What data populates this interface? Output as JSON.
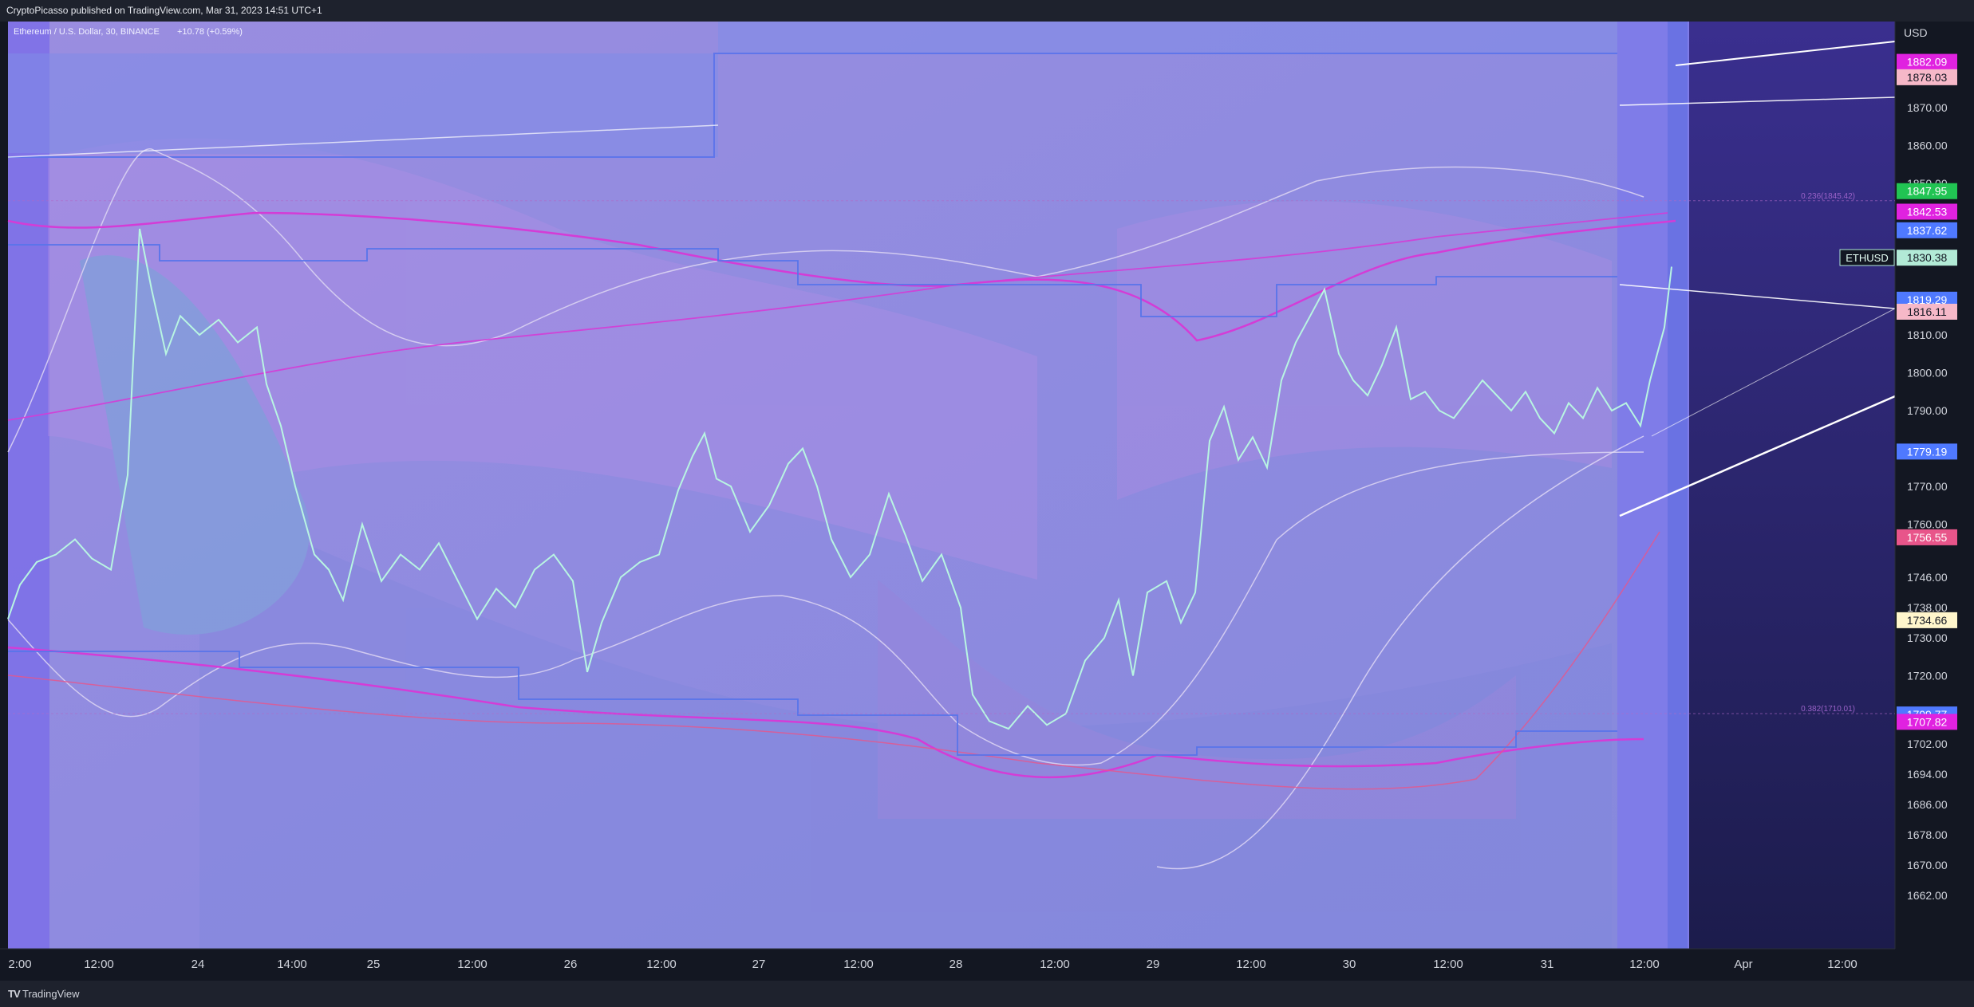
{
  "header": {
    "published_by": "CryptoPicasso published on TradingView.com, Mar 31, 2023 14:51 UTC+1"
  },
  "footer": {
    "brand": "TradingView",
    "logo_icon": "tradingview-logo-icon"
  },
  "legend": {
    "symbol_line": "Ethereum / U.S. Dollar, 30, BINANCE",
    "change": "+10.78 (+0.59%)"
  },
  "chart_data": {
    "type": "line",
    "symbol": "ETHUSD",
    "currency": "USD",
    "x_ticks": [
      "2:00",
      "12:00",
      "24",
      "14:00",
      "25",
      "12:00",
      "26",
      "12:00",
      "27",
      "12:00",
      "28",
      "12:00",
      "29",
      "12:00",
      "30",
      "12:00",
      "31",
      "12:00",
      "Apr",
      "12:00"
    ],
    "y_ticks": [
      1870,
      1860,
      1850,
      1830,
      1820,
      1810,
      1800,
      1790,
      1780,
      1770,
      1760,
      1746,
      1738,
      1730,
      1720,
      1710,
      1702,
      1694,
      1686,
      1678,
      1670,
      1662
    ],
    "y_tick_labels": [
      "1870.00",
      "1860.00",
      "1850.00",
      "1830.00",
      "1820.00",
      "1810.00",
      "1800.00",
      "1790.00",
      "1780.00",
      "1770.00",
      "1760.00",
      "1746.00",
      "1738.00",
      "1730.00",
      "1720.00",
      "1710.00",
      "1702.00",
      "1694.00",
      "1686.00",
      "1678.00",
      "1670.00",
      "1662.00"
    ],
    "price_series": [
      [
        0,
        1735
      ],
      [
        5,
        1744
      ],
      [
        12,
        1750
      ],
      [
        20,
        1752
      ],
      [
        28,
        1756
      ],
      [
        35,
        1751
      ],
      [
        43,
        1748
      ],
      [
        50,
        1773
      ],
      [
        55,
        1838
      ],
      [
        60,
        1822
      ],
      [
        66,
        1805
      ],
      [
        72,
        1815
      ],
      [
        80,
        1810
      ],
      [
        88,
        1814
      ],
      [
        96,
        1808
      ],
      [
        104,
        1812
      ],
      [
        108,
        1797
      ],
      [
        114,
        1786
      ],
      [
        120,
        1770
      ],
      [
        128,
        1752
      ],
      [
        134,
        1748
      ],
      [
        140,
        1740
      ],
      [
        148,
        1760
      ],
      [
        156,
        1745
      ],
      [
        164,
        1752
      ],
      [
        172,
        1748
      ],
      [
        180,
        1755
      ],
      [
        188,
        1745
      ],
      [
        196,
        1735
      ],
      [
        204,
        1743
      ],
      [
        212,
        1738
      ],
      [
        220,
        1748
      ],
      [
        228,
        1752
      ],
      [
        236,
        1745
      ],
      [
        242,
        1721
      ],
      [
        248,
        1734
      ],
      [
        256,
        1746
      ],
      [
        264,
        1750
      ],
      [
        272,
        1752
      ],
      [
        280,
        1769
      ],
      [
        286,
        1778
      ],
      [
        291,
        1784
      ],
      [
        296,
        1772
      ],
      [
        302,
        1770
      ],
      [
        310,
        1758
      ],
      [
        318,
        1765
      ],
      [
        326,
        1776
      ],
      [
        332,
        1780
      ],
      [
        338,
        1770
      ],
      [
        344,
        1756
      ],
      [
        352,
        1746
      ],
      [
        360,
        1752
      ],
      [
        368,
        1768
      ],
      [
        375,
        1757
      ],
      [
        382,
        1745
      ],
      [
        390,
        1752
      ],
      [
        398,
        1738
      ],
      [
        403,
        1715
      ],
      [
        410,
        1708
      ],
      [
        418,
        1706
      ],
      [
        426,
        1712
      ],
      [
        434,
        1707
      ],
      [
        442,
        1710
      ],
      [
        450,
        1724
      ],
      [
        458,
        1730
      ],
      [
        464,
        1740
      ],
      [
        470,
        1720
      ],
      [
        476,
        1742
      ],
      [
        484,
        1745
      ],
      [
        490,
        1734
      ],
      [
        496,
        1742
      ],
      [
        502,
        1782
      ],
      [
        508,
        1791
      ],
      [
        514,
        1777
      ],
      [
        520,
        1783
      ],
      [
        526,
        1775
      ],
      [
        532,
        1798
      ],
      [
        538,
        1808
      ],
      [
        544,
        1815
      ],
      [
        550,
        1822
      ],
      [
        556,
        1805
      ],
      [
        562,
        1798
      ],
      [
        568,
        1794
      ],
      [
        574,
        1802
      ],
      [
        580,
        1812
      ],
      [
        586,
        1793
      ],
      [
        592,
        1795
      ],
      [
        598,
        1790
      ],
      [
        604,
        1788
      ],
      [
        610,
        1793
      ],
      [
        616,
        1798
      ],
      [
        622,
        1794
      ],
      [
        628,
        1790
      ],
      [
        634,
        1795
      ],
      [
        640,
        1788
      ],
      [
        646,
        1784
      ],
      [
        652,
        1792
      ],
      [
        658,
        1788
      ],
      [
        664,
        1796
      ],
      [
        670,
        1790
      ],
      [
        676,
        1792
      ],
      [
        682,
        1786
      ],
      [
        686,
        1798
      ],
      [
        692,
        1812
      ],
      [
        695,
        1828
      ]
    ],
    "key_levels": [
      {
        "price": 1882.09,
        "label": "1882.09",
        "color": "#e022e0"
      },
      {
        "price": 1878.03,
        "label": "1878.03",
        "color": "#f6b8c8"
      },
      {
        "price": 1847.95,
        "label": "1847.95",
        "color": "#21c453"
      },
      {
        "price": 1842.53,
        "label": "1842.53",
        "color": "#e022e0"
      },
      {
        "price": 1837.62,
        "label": "1837.62",
        "color": "#4f79ff"
      },
      {
        "price": 1830.38,
        "label": "1830.38",
        "color": "#b2ead6"
      },
      {
        "price": 1819.29,
        "label": "1819.29",
        "color": "#4f79ff"
      },
      {
        "price": 1816.11,
        "label": "1816.11",
        "color": "#f6b8c8"
      },
      {
        "price": 1779.19,
        "label": "1779.19",
        "color": "#4f79ff"
      },
      {
        "price": 1756.55,
        "label": "1756.55",
        "color": "#e8558a"
      },
      {
        "price": 1734.66,
        "label": "1734.66",
        "color": "#fff6cc"
      },
      {
        "price": 1709.77,
        "label": "1709.77",
        "color": "#4f79ff"
      },
      {
        "price": 1707.82,
        "label": "1707.82",
        "color": "#e022e0"
      }
    ],
    "fib_labels": [
      {
        "text": "0.236(1845.42)",
        "price": 1845.42
      },
      {
        "text": "0.382(1710.01)",
        "price": 1710.01
      }
    ],
    "colors": {
      "price_line": "#b8f5e2",
      "background_overlay": "#8b8ee0",
      "future_area": "#2d2a78",
      "magenta_ma": "#d43cd6",
      "blue_step": "#5874ea"
    }
  }
}
